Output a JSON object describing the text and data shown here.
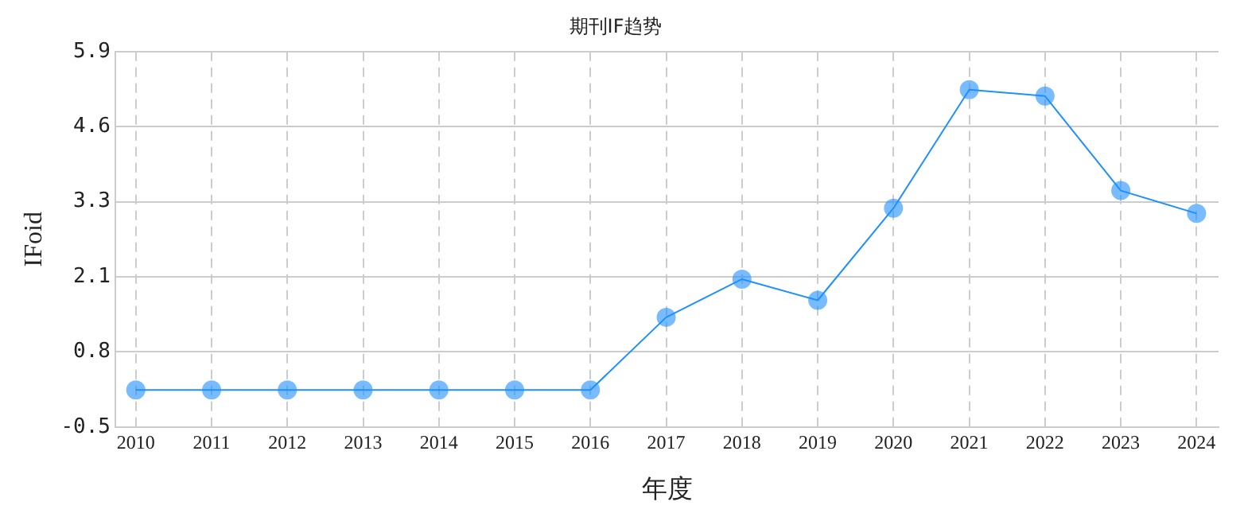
{
  "chart_data": {
    "type": "line",
    "title": "期刊IF趋势",
    "xlabel": "年度",
    "ylabel": "IFoid",
    "categories": [
      "2010",
      "2011",
      "2012",
      "2013",
      "2014",
      "2015",
      "2016",
      "2017",
      "2018",
      "2019",
      "2020",
      "2021",
      "2022",
      "2023",
      "2024"
    ],
    "series": [
      {
        "color": "#1e90ff",
        "values": [
          0.13,
          0.13,
          0.13,
          0.13,
          0.13,
          0.13,
          0.13,
          1.37,
          2.02,
          1.66,
          3.23,
          5.25,
          5.14,
          3.53,
          3.14
        ]
      }
    ],
    "ylim": [
      -0.5,
      5.9
    ],
    "yticks": [
      -0.5,
      {
        "value": 0.78,
        "label": "0.8"
      },
      {
        "value": 2.06,
        "label": "2.1"
      },
      {
        "value": 3.34,
        "label": "3.3"
      },
      {
        "value": 4.62,
        "label": "4.6"
      },
      5.9
    ],
    "grid": true,
    "marker": "circle",
    "line_style": "solid"
  }
}
